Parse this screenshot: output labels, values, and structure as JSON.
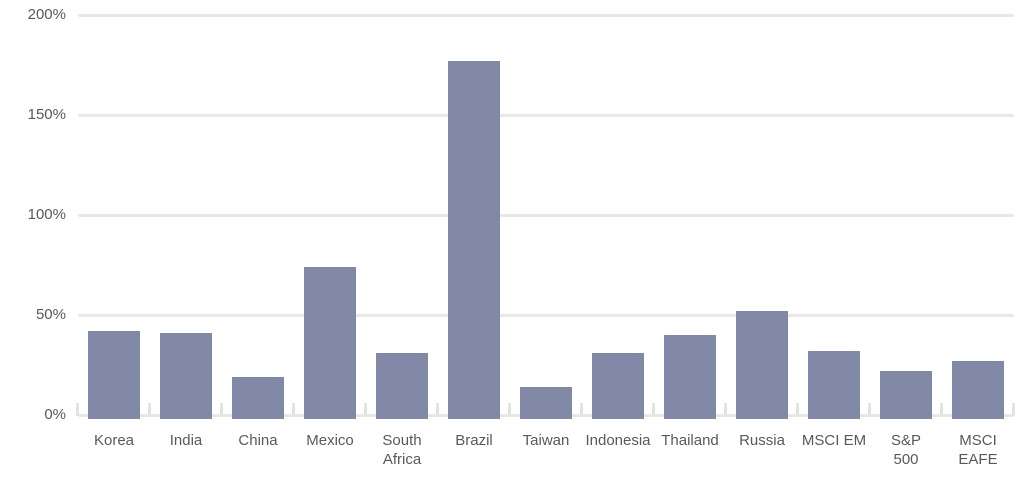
{
  "chart_data": {
    "type": "bar",
    "categories": [
      "Korea",
      "India",
      "China",
      "Mexico",
      "South Africa",
      "Brazil",
      "Taiwan",
      "Indonesia",
      "Thailand",
      "Russia",
      "MSCI EM",
      "S&P 500",
      "MSCI EAFE"
    ],
    "tick_labels": [
      "Korea",
      "India",
      "China",
      "Mexico",
      "South\nAfrica",
      "Brazil",
      "Taiwan",
      "Indonesia",
      "Thailand",
      "Russia",
      "MSCI EM",
      "S&P\n500",
      "MSCI\nEAFE"
    ],
    "values": [
      42,
      41,
      19,
      74,
      31,
      177,
      14,
      31,
      40,
      52,
      32,
      22,
      27
    ],
    "unit": "%",
    "title": "",
    "xlabel": "",
    "ylabel": "",
    "ylim": [
      0,
      200
    ],
    "y_ticks": [
      0,
      50,
      100,
      150,
      200
    ],
    "y_tick_labels": [
      "0%",
      "50%",
      "100%",
      "150%",
      "200%"
    ],
    "grid": true,
    "legend": false,
    "colors": {
      "bar": "#8189A7",
      "gridline": "#E8E8E9",
      "tick": "#E2E2E3",
      "axis_label": "#595959",
      "background": "#FFFFFF"
    }
  }
}
